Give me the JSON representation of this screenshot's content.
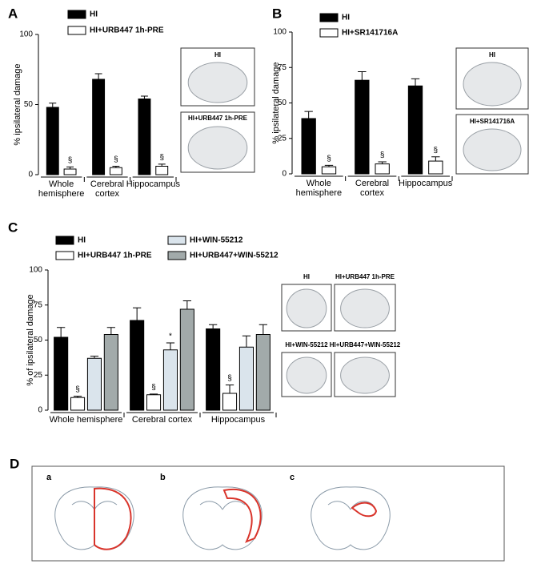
{
  "chart_data": [
    {
      "type": "bar",
      "panel": "A",
      "y_label": "% ipsilateral damage",
      "categories": [
        "Whole\nhemisphere",
        "Cerebral\ncortex",
        "Hippocampus"
      ],
      "series": [
        {
          "name": "HI",
          "color": "#000000",
          "values": [
            48,
            68,
            54
          ],
          "errors": [
            3,
            4,
            2
          ]
        },
        {
          "name": "HI+URB447 1h-PRE",
          "color": "#ffffff",
          "values": [
            4,
            5,
            6
          ],
          "errors": [
            1.5,
            1,
            1.5
          ],
          "markers": [
            "§",
            "§",
            "§"
          ]
        }
      ],
      "ylim": [
        0,
        100
      ],
      "yticks": [
        0,
        50,
        100
      ],
      "image_labels": [
        "HI",
        "HI+URB447 1h-PRE"
      ]
    },
    {
      "type": "bar",
      "panel": "B",
      "y_label": "% ipsilateral damage",
      "categories": [
        "Whole\nhemisphere",
        "Cerebral\ncortex",
        "Hippocampus"
      ],
      "series": [
        {
          "name": "HI",
          "color": "#000000",
          "values": [
            39,
            66,
            62
          ],
          "errors": [
            5,
            6,
            5
          ]
        },
        {
          "name": "HI+SR141716A",
          "color": "#ffffff",
          "values": [
            5,
            7,
            9
          ],
          "errors": [
            1,
            1.5,
            3
          ],
          "markers": [
            "§",
            "§",
            "§"
          ]
        }
      ],
      "ylim": [
        0,
        100
      ],
      "yticks": [
        0,
        25,
        50,
        75,
        100
      ],
      "image_labels": [
        "HI",
        "HI+SR141716A"
      ]
    },
    {
      "type": "bar",
      "panel": "C",
      "y_label": "% of ipsilateral damage",
      "categories": [
        "Whole  hemisphere",
        "Cerebral cortex",
        "Hippocampus"
      ],
      "series": [
        {
          "name": "HI",
          "color": "#000000",
          "values": [
            52,
            64,
            58
          ],
          "errors": [
            7,
            9,
            3
          ]
        },
        {
          "name": "HI+URB447 1h-PRE",
          "color": "#ffffff",
          "values": [
            9,
            11,
            12
          ],
          "errors": [
            1,
            0.5,
            6
          ],
          "markers": [
            "§",
            "§",
            "§"
          ]
        },
        {
          "name": "HI+WIN-55212",
          "color": "#dae4ec",
          "values": [
            37,
            43,
            45
          ],
          "errors": [
            1.5,
            5,
            8
          ],
          "markers": [
            null,
            "*",
            null
          ]
        },
        {
          "name": "HI+URB447+WIN-55212",
          "color": "#a2aaaa",
          "values": [
            54,
            72,
            54
          ],
          "errors": [
            5,
            6,
            7
          ]
        }
      ],
      "ylim": [
        0,
        100
      ],
      "yticks": [
        0,
        25,
        50,
        75,
        100
      ],
      "image_labels": [
        "HI",
        "HI+URB447 1h-PRE",
        "HI+WIN-55212",
        "HI+URB447+WIN-55212"
      ]
    }
  ],
  "panel_d": {
    "letter": "D",
    "labels": [
      "a",
      "b",
      "c"
    ]
  }
}
